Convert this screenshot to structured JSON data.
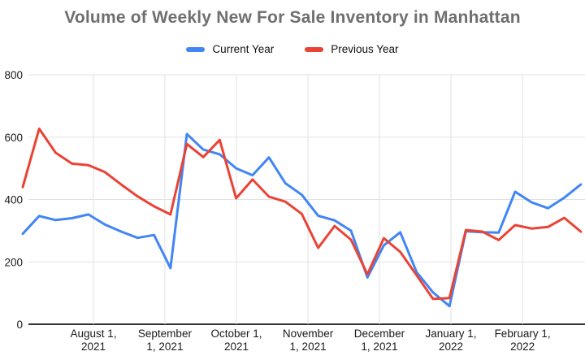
{
  "title": "Volume of Weekly New For Sale Inventory in Manhattan",
  "colors": {
    "title_text": "#6f6f6f",
    "current_year": "#4285F4",
    "previous_year": "#EA4335",
    "gridline": "#e2e2e2",
    "axis_line": "#333333",
    "tick_text": "#1a1a1a"
  },
  "legend": {
    "items": [
      {
        "label": "Current Year",
        "color": "#4285F4"
      },
      {
        "label": "Previous Year",
        "color": "#EA4335"
      }
    ]
  },
  "chart_data": {
    "type": "line",
    "title": "Volume of Weekly New For Sale Inventory in Manhattan",
    "xlabel": "",
    "ylabel": "",
    "x_unit": "week-index (weekly points, ~July 2021 through ~Feb 2022)",
    "x": [
      0,
      1,
      2,
      3,
      4,
      5,
      6,
      7,
      8,
      9,
      10,
      11,
      12,
      13,
      14,
      15,
      16,
      17,
      18,
      19,
      20,
      21,
      22,
      23,
      24,
      25,
      26,
      27,
      28,
      29,
      30,
      31,
      32,
      33,
      34
    ],
    "series": [
      {
        "name": "Current Year",
        "color": "#4285F4",
        "values": [
          290,
          347,
          334,
          340,
          352,
          320,
          297,
          277,
          286,
          180,
          610,
          560,
          545,
          500,
          478,
          535,
          452,
          415,
          348,
          333,
          300,
          150,
          253,
          295,
          167,
          102,
          58,
          298,
          295,
          294,
          425,
          391,
          372,
          406,
          448
        ]
      },
      {
        "name": "Previous Year",
        "color": "#EA4335",
        "values": [
          440,
          627,
          550,
          515,
          510,
          488,
          448,
          410,
          378,
          352,
          578,
          536,
          591,
          404,
          464,
          409,
          393,
          354,
          245,
          315,
          271,
          160,
          276,
          232,
          157,
          81,
          84,
          302,
          297,
          270,
          318,
          307,
          312,
          341,
          297
        ]
      }
    ],
    "ylim": [
      0,
      800
    ],
    "y_ticks": [
      0,
      200,
      400,
      600,
      800
    ],
    "x_ticks": [
      {
        "pos": 4.31,
        "line1": "August 1,",
        "line2": "2021"
      },
      {
        "pos": 8.66,
        "line1": "September",
        "line2": "1, 2021"
      },
      {
        "pos": 13.02,
        "line1": "October 1,",
        "line2": "2021"
      },
      {
        "pos": 17.38,
        "line1": "November",
        "line2": "1, 2021"
      },
      {
        "pos": 21.73,
        "line1": "December",
        "line2": "1, 2021"
      },
      {
        "pos": 26.09,
        "line1": "January 1,",
        "line2": "2022"
      },
      {
        "pos": 30.45,
        "line1": "February 1,",
        "line2": "2022"
      }
    ],
    "grid": true,
    "legend_position": "top"
  }
}
